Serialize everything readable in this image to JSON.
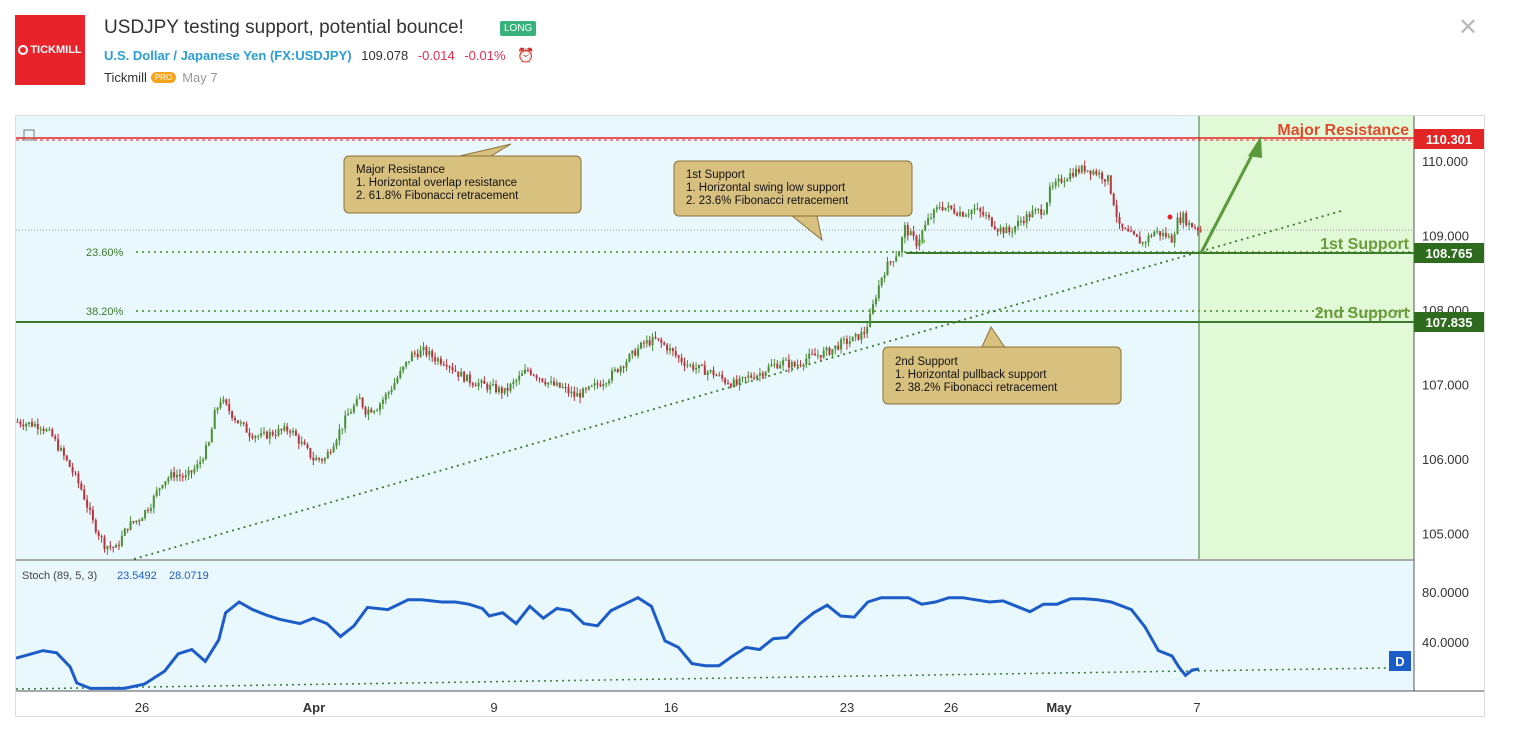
{
  "header": {
    "logo_text": "TICKMILL",
    "title": "USDJPY testing support, potential bounce!",
    "badge": "LONG",
    "symbol_name": "U.S. Dollar / Japanese Yen",
    "symbol_code": "(FX:USDJPY)",
    "last_price": "109.078",
    "change": "-0.014",
    "change_pct": "-0.01%",
    "author": "Tickmill",
    "author_badge": "PRO",
    "date": "May 7"
  },
  "colors": {
    "bg_chart": "#e9f8fd",
    "forecast_zone": "#e2f9d8",
    "up_candle": "#4b8f35",
    "down_candle": "#b8333a",
    "resistance": "#e22626",
    "support": "#4a8a2b",
    "annotation_bg": "#d8c07f",
    "stoch_line": "#1c5cc9"
  },
  "chart_data": {
    "type": "candlestick",
    "price_axis_ticks": [
      "110.000",
      "109.000",
      "108.000",
      "107.000",
      "106.000",
      "105.000"
    ],
    "time_axis_ticks": [
      "26",
      "Apr",
      "9",
      "16",
      "23",
      "26",
      "May",
      "7"
    ],
    "levels": [
      {
        "label": "Major Resistance",
        "value": "110.301",
        "color": "#e22626"
      },
      {
        "label": "1st Support",
        "value": "108.765",
        "color": "#4a8a2b"
      },
      {
        "label": "2nd Support",
        "value": "107.835",
        "color": "#4a8a2b"
      }
    ],
    "fib_labels": [
      "23.60%",
      "38.20%"
    ],
    "annotations": [
      {
        "lines": [
          "Major Resistance",
          "1. Horizontal overlap resistance",
          "2. 61.8% Fibonacci retracement"
        ]
      },
      {
        "lines": [
          "1st Support",
          "1. Horizontal swing low support",
          "2. 23.6% Fibonacci retracement"
        ]
      },
      {
        "lines": [
          "2nd Support",
          "1. Horizontal pullback support",
          "2. 38.2% Fibonacci retracement"
        ]
      }
    ],
    "close_path": [
      [
        0,
        106.5
      ],
      [
        8,
        106.45
      ],
      [
        12,
        106.3
      ],
      [
        18,
        105.9
      ],
      [
        22,
        105.6
      ],
      [
        26,
        105.15
      ],
      [
        30,
        104.85
      ],
      [
        34,
        104.8
      ],
      [
        38,
        105.1
      ],
      [
        42,
        105.2
      ],
      [
        46,
        105.4
      ],
      [
        50,
        105.7
      ],
      [
        54,
        105.8
      ],
      [
        58,
        105.75
      ],
      [
        62,
        105.9
      ],
      [
        66,
        106.2
      ],
      [
        68,
        106.6
      ],
      [
        70,
        106.8
      ],
      [
        72,
        106.7
      ],
      [
        76,
        106.5
      ],
      [
        80,
        106.35
      ],
      [
        84,
        106.3
      ],
      [
        88,
        106.35
      ],
      [
        94,
        106.4
      ],
      [
        98,
        106.2
      ],
      [
        102,
        106.0
      ],
      [
        106,
        106.0
      ],
      [
        110,
        106.3
      ],
      [
        114,
        106.6
      ],
      [
        118,
        106.8
      ],
      [
        120,
        106.65
      ],
      [
        124,
        106.7
      ],
      [
        128,
        106.9
      ],
      [
        132,
        107.15
      ],
      [
        136,
        107.4
      ],
      [
        140,
        107.45
      ],
      [
        144,
        107.35
      ],
      [
        148,
        107.3
      ],
      [
        152,
        107.15
      ],
      [
        156,
        107.05
      ],
      [
        160,
        107.0
      ],
      [
        164,
        106.95
      ],
      [
        168,
        106.9
      ],
      [
        172,
        107.05
      ],
      [
        176,
        107.2
      ],
      [
        180,
        107.1
      ],
      [
        184,
        107.0
      ],
      [
        188,
        106.95
      ],
      [
        192,
        106.85
      ],
      [
        196,
        106.9
      ],
      [
        200,
        107.0
      ],
      [
        204,
        107.1
      ],
      [
        208,
        107.25
      ],
      [
        212,
        107.4
      ],
      [
        216,
        107.55
      ],
      [
        220,
        107.6
      ],
      [
        224,
        107.5
      ],
      [
        228,
        107.35
      ],
      [
        232,
        107.25
      ],
      [
        236,
        107.2
      ],
      [
        240,
        107.15
      ],
      [
        244,
        107.05
      ],
      [
        248,
        107.0
      ],
      [
        252,
        107.1
      ],
      [
        256,
        107.15
      ],
      [
        260,
        107.25
      ],
      [
        264,
        107.3
      ],
      [
        268,
        107.25
      ],
      [
        272,
        107.35
      ],
      [
        276,
        107.4
      ],
      [
        280,
        107.45
      ],
      [
        284,
        107.55
      ],
      [
        288,
        107.6
      ],
      [
        292,
        107.7
      ],
      [
        294,
        107.9
      ],
      [
        296,
        108.2
      ],
      [
        298,
        108.45
      ],
      [
        300,
        108.6
      ],
      [
        304,
        108.8
      ],
      [
        306,
        109.1
      ],
      [
        310,
        108.9
      ],
      [
        314,
        109.2
      ],
      [
        318,
        109.4
      ],
      [
        322,
        109.35
      ],
      [
        326,
        109.3
      ],
      [
        330,
        109.35
      ],
      [
        334,
        109.25
      ],
      [
        338,
        109.1
      ],
      [
        342,
        109.05
      ],
      [
        346,
        109.2
      ],
      [
        350,
        109.3
      ],
      [
        354,
        109.35
      ],
      [
        356,
        109.6
      ],
      [
        360,
        109.75
      ],
      [
        364,
        109.85
      ],
      [
        368,
        109.9
      ],
      [
        372,
        109.85
      ],
      [
        376,
        109.75
      ],
      [
        378,
        109.45
      ],
      [
        380,
        109.1
      ],
      [
        384,
        109.0
      ],
      [
        388,
        108.9
      ],
      [
        392,
        109.05
      ],
      [
        396,
        109.0
      ],
      [
        398,
        108.95
      ],
      [
        400,
        109.2
      ],
      [
        402,
        109.25
      ],
      [
        404,
        109.15
      ],
      [
        408,
        109.08
      ]
    ],
    "stoch": {
      "label": "Stoch (89, 5, 3)",
      "k": "23.5492",
      "d": "28.0719",
      "axis_ticks": [
        "80.0000",
        "40.0000"
      ],
      "marker": "D",
      "values": [
        [
          0,
          38
        ],
        [
          8,
          45
        ],
        [
          12,
          43
        ],
        [
          16,
          30
        ],
        [
          18,
          15
        ],
        [
          22,
          10
        ],
        [
          28,
          10
        ],
        [
          32,
          10
        ],
        [
          38,
          14
        ],
        [
          44,
          26
        ],
        [
          48,
          42
        ],
        [
          52,
          46
        ],
        [
          56,
          35
        ],
        [
          60,
          55
        ],
        [
          62,
          80
        ],
        [
          66,
          90
        ],
        [
          70,
          83
        ],
        [
          74,
          78
        ],
        [
          78,
          74
        ],
        [
          84,
          70
        ],
        [
          88,
          75
        ],
        [
          92,
          70
        ],
        [
          96,
          58
        ],
        [
          100,
          68
        ],
        [
          104,
          85
        ],
        [
          110,
          83
        ],
        [
          116,
          92
        ],
        [
          120,
          92
        ],
        [
          126,
          90
        ],
        [
          130,
          90
        ],
        [
          134,
          88
        ],
        [
          138,
          84
        ],
        [
          140,
          77
        ],
        [
          144,
          80
        ],
        [
          148,
          70
        ],
        [
          152,
          86
        ],
        [
          156,
          75
        ],
        [
          160,
          84
        ],
        [
          164,
          82
        ],
        [
          168,
          70
        ],
        [
          172,
          68
        ],
        [
          176,
          82
        ],
        [
          180,
          88
        ],
        [
          184,
          94
        ],
        [
          188,
          86
        ],
        [
          192,
          54
        ],
        [
          196,
          48
        ],
        [
          200,
          33
        ],
        [
          204,
          31
        ],
        [
          208,
          31
        ],
        [
          212,
          40
        ],
        [
          216,
          48
        ],
        [
          220,
          46
        ],
        [
          224,
          56
        ],
        [
          228,
          57
        ],
        [
          232,
          70
        ],
        [
          236,
          80
        ],
        [
          240,
          87
        ],
        [
          244,
          77
        ],
        [
          248,
          76
        ],
        [
          252,
          90
        ],
        [
          256,
          94
        ],
        [
          260,
          94
        ],
        [
          264,
          94
        ],
        [
          268,
          88
        ],
        [
          272,
          90
        ],
        [
          276,
          94
        ],
        [
          280,
          94
        ],
        [
          284,
          92
        ],
        [
          288,
          90
        ],
        [
          292,
          91
        ],
        [
          296,
          86
        ],
        [
          300,
          81
        ],
        [
          304,
          88
        ],
        [
          308,
          88
        ],
        [
          312,
          93
        ],
        [
          316,
          93
        ],
        [
          320,
          92
        ],
        [
          324,
          90
        ],
        [
          330,
          83
        ],
        [
          334,
          67
        ],
        [
          338,
          45
        ],
        [
          342,
          40
        ],
        [
          344,
          30
        ],
        [
          346,
          22
        ],
        [
          348,
          27
        ],
        [
          350,
          28
        ]
      ]
    }
  }
}
